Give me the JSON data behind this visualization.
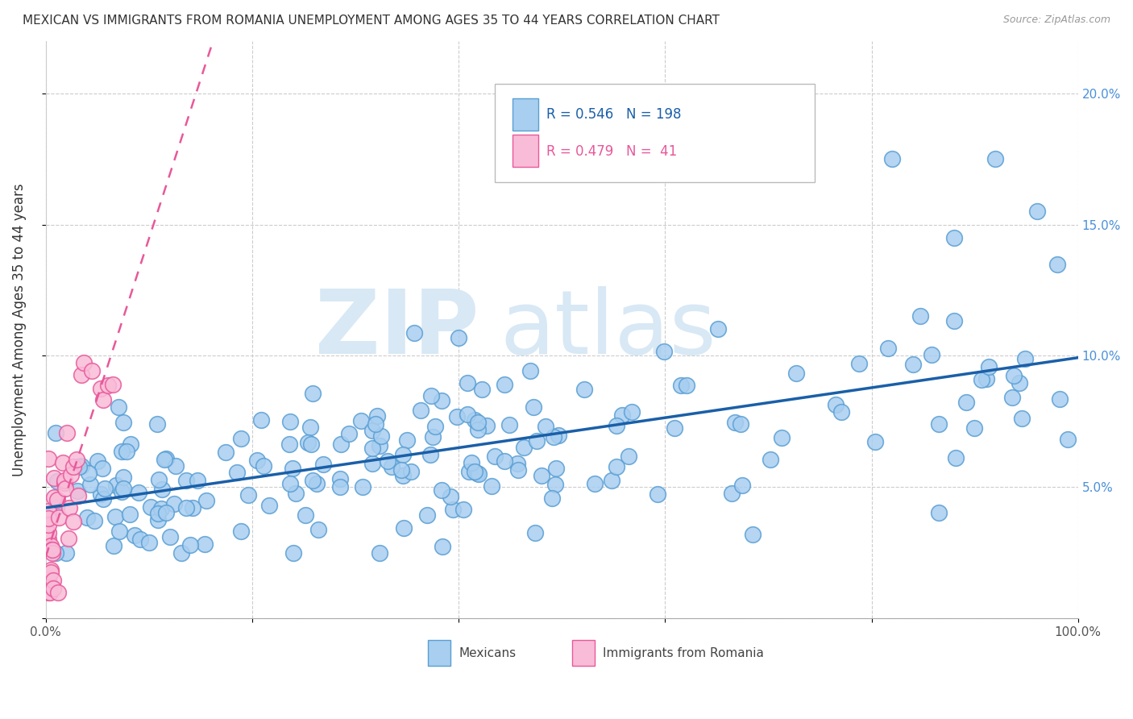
{
  "title": "MEXICAN VS IMMIGRANTS FROM ROMANIA UNEMPLOYMENT AMONG AGES 35 TO 44 YEARS CORRELATION CHART",
  "source": "Source: ZipAtlas.com",
  "ylabel": "Unemployment Among Ages 35 to 44 years",
  "xlim": [
    0.0,
    1.0
  ],
  "ylim": [
    0.0,
    0.22
  ],
  "x_tick_vals": [
    0.0,
    0.2,
    0.4,
    0.6,
    0.8,
    1.0
  ],
  "x_tick_labels": [
    "0.0%",
    "",
    "",
    "",
    "",
    "100.0%"
  ],
  "y_tick_vals": [
    0.0,
    0.05,
    0.1,
    0.15,
    0.2
  ],
  "y_tick_labels": [
    "",
    "5.0%",
    "10.0%",
    "15.0%",
    "20.0%"
  ],
  "mexican_color": "#a8cef0",
  "mexican_edge": "#5a9fd4",
  "romania_color": "#f9bcd8",
  "romania_edge": "#e8589a",
  "trend_mexican_color": "#1a5fa8",
  "trend_romania_color": "#e8589a",
  "right_tick_color": "#4a90d9",
  "watermark_zip_color": "#d8e8f5",
  "watermark_atlas_color": "#d8e8f5",
  "legend_r_mexican": "0.546",
  "legend_n_mexican": "198",
  "legend_r_romania": "0.479",
  "legend_n_romania": "41",
  "title_fontsize": 11,
  "source_fontsize": 9,
  "tick_fontsize": 11,
  "ylabel_fontsize": 12
}
